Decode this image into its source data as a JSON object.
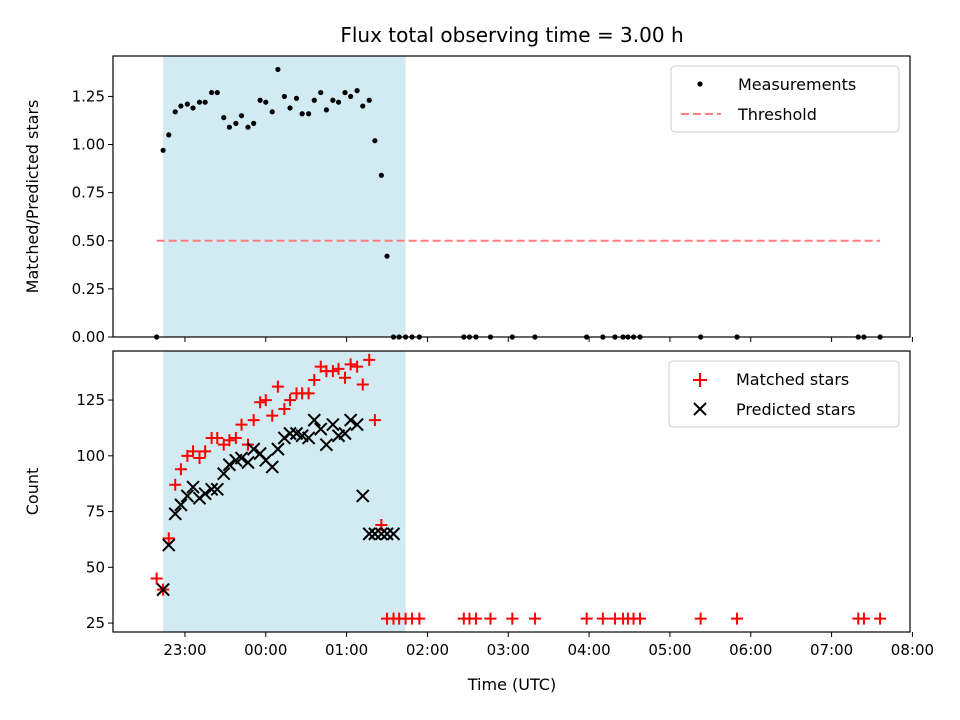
{
  "chart_data": {
    "type": "scatter",
    "title": "Flux total observing time = 3.00 h",
    "xlabel": "Time (UTC)",
    "x_unit": "hours since 00:00 UTC",
    "xlim": [
      -1.89,
      7.97
    ],
    "x_ticks": [
      -1,
      0,
      1,
      2,
      3,
      4,
      5,
      6,
      7,
      8
    ],
    "x_tick_labels": [
      "23:00",
      "00:00",
      "01:00",
      "02:00",
      "03:00",
      "04:00",
      "05:00",
      "06:00",
      "07:00",
      "08:00"
    ],
    "shaded_interval": [
      -1.27,
      1.73
    ],
    "shade_color": "#add8e6",
    "panels": [
      {
        "ylabel": "Matched/Predicted stars",
        "ylim": [
          0,
          1.46
        ],
        "y_ticks": [
          0,
          0.25,
          0.5,
          0.75,
          1.0,
          1.25
        ],
        "y_tick_labels": [
          "0.00",
          "0.25",
          "0.50",
          "0.75",
          "1.00",
          "1.25"
        ],
        "legend_position": "top-right",
        "series": [
          {
            "name": "Measurements",
            "marker": "dot",
            "color": "#000000",
            "x": [
              -1.35,
              -1.27,
              -1.2,
              -1.12,
              -1.05,
              -0.97,
              -0.9,
              -0.82,
              -0.75,
              -0.67,
              -0.6,
              -0.52,
              -0.45,
              -0.37,
              -0.3,
              -0.22,
              -0.15,
              -0.07,
              0.0,
              0.08,
              0.15,
              0.23,
              0.3,
              0.38,
              0.45,
              0.53,
              0.6,
              0.68,
              0.75,
              0.83,
              0.9,
              0.98,
              1.05,
              1.13,
              1.2,
              1.28,
              1.35,
              1.43,
              1.5,
              1.58,
              1.65,
              1.73,
              1.81,
              1.9,
              2.45,
              2.52,
              2.6,
              2.78,
              3.05,
              3.33,
              3.97,
              4.17,
              4.32,
              4.42,
              4.48,
              4.55,
              4.63,
              5.38,
              5.83,
              7.33,
              7.4,
              7.6
            ],
            "y": [
              0.0,
              0.97,
              1.05,
              1.17,
              1.2,
              1.21,
              1.19,
              1.22,
              1.22,
              1.27,
              1.27,
              1.14,
              1.09,
              1.11,
              1.15,
              1.09,
              1.11,
              1.23,
              1.22,
              1.17,
              1.39,
              1.25,
              1.19,
              1.24,
              1.16,
              1.16,
              1.23,
              1.27,
              1.18,
              1.23,
              1.22,
              1.27,
              1.25,
              1.28,
              1.2,
              1.23,
              1.02,
              0.84,
              0.42,
              0.0,
              0.0,
              0.0,
              0.0,
              0.0,
              0.0,
              0.0,
              0.0,
              0.0,
              0.0,
              0.0,
              0.0,
              0.0,
              0.0,
              0.0,
              0.0,
              0.0,
              0.0,
              0.0,
              0.0,
              0.0,
              0.0,
              0.0
            ]
          },
          {
            "name": "Threshold",
            "marker": "dashed-line",
            "color": "#ff7f7f",
            "x": [
              -1.35,
              7.6
            ],
            "y": [
              0.5,
              0.5
            ]
          }
        ]
      },
      {
        "ylabel": "Count",
        "ylim": [
          21,
          147
        ],
        "y_ticks": [
          25,
          50,
          75,
          100,
          125
        ],
        "y_tick_labels": [
          "25",
          "50",
          "75",
          "100",
          "125"
        ],
        "legend_position": "top-right",
        "series": [
          {
            "name": "Matched stars",
            "marker": "plus",
            "color": "#ff0000",
            "x": [
              -1.35,
              -1.27,
              -1.2,
              -1.12,
              -1.05,
              -0.97,
              -0.9,
              -0.82,
              -0.75,
              -0.67,
              -0.6,
              -0.52,
              -0.45,
              -0.37,
              -0.3,
              -0.22,
              -0.15,
              -0.07,
              0.0,
              0.08,
              0.15,
              0.23,
              0.3,
              0.38,
              0.45,
              0.53,
              0.6,
              0.68,
              0.75,
              0.83,
              0.9,
              0.98,
              1.05,
              1.13,
              1.2,
              1.28,
              1.35,
              1.43,
              1.5,
              1.58,
              1.65,
              1.73,
              1.81,
              1.9,
              2.45,
              2.52,
              2.6,
              2.78,
              3.05,
              3.33,
              3.97,
              4.17,
              4.32,
              4.42,
              4.48,
              4.55,
              4.63,
              5.38,
              5.83,
              7.33,
              7.4,
              7.6
            ],
            "y": [
              45,
              40,
              63,
              87,
              94,
              100,
              102,
              99,
              102,
              108,
              108,
              105,
              107,
              108,
              114,
              105,
              116,
              124,
              125,
              118,
              131,
              121,
              125,
              128,
              128,
              128,
              134,
              140,
              138,
              138,
              139,
              135,
              141,
              140,
              132,
              143,
              116,
              69,
              27,
              27,
              27,
              27,
              27,
              27,
              27,
              27,
              27,
              27,
              27,
              27,
              27,
              27,
              27,
              27,
              27,
              27,
              27,
              27,
              27,
              27,
              27,
              27
            ]
          },
          {
            "name": "Predicted stars",
            "marker": "x",
            "color": "#000000",
            "x": [
              -1.27,
              -1.2,
              -1.12,
              -1.05,
              -0.97,
              -0.9,
              -0.82,
              -0.75,
              -0.67,
              -0.6,
              -0.52,
              -0.45,
              -0.37,
              -0.3,
              -0.22,
              -0.15,
              -0.07,
              0.0,
              0.08,
              0.15,
              0.23,
              0.3,
              0.38,
              0.45,
              0.53,
              0.6,
              0.68,
              0.75,
              0.83,
              0.9,
              0.98,
              1.05,
              1.13,
              1.2,
              1.28,
              1.35,
              1.43,
              1.5,
              1.58
            ],
            "y": [
              40,
              60,
              74,
              78,
              82,
              86,
              81,
              83,
              85,
              85,
              92,
              96,
              98,
              99,
              97,
              103,
              101,
              98,
              95,
              103,
              108,
              110,
              110,
              109,
              108,
              116,
              112,
              105,
              114,
              109,
              110,
              116,
              114,
              82,
              65,
              65,
              65,
              65,
              65
            ]
          }
        ]
      }
    ]
  }
}
